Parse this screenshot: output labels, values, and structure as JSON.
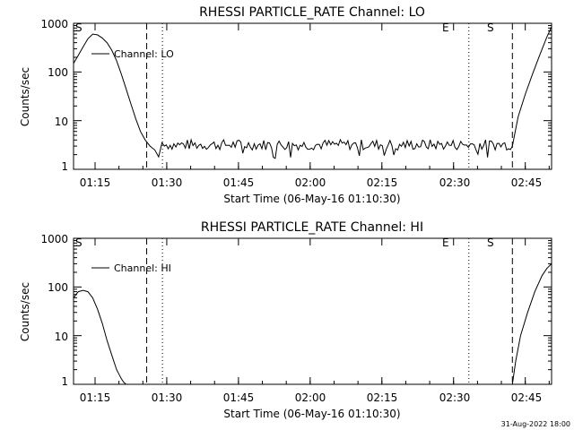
{
  "chart_data": [
    {
      "type": "line",
      "title": "RHESSI PARTICLE_RATE Channel: LO",
      "xlabel": "Start Time (06-May-16 01:10:30)",
      "ylabel": "Counts/sec",
      "yscale": "log",
      "ylim": [
        1,
        1000
      ],
      "xlim_minutes": [
        0,
        100
      ],
      "x_ticks": [
        {
          "label": "01:15",
          "minute": 4.5
        },
        {
          "label": "01:30",
          "minute": 19.5
        },
        {
          "label": "01:45",
          "minute": 34.5
        },
        {
          "label": "02:00",
          "minute": 49.5
        },
        {
          "label": "02:15",
          "minute": 64.5
        },
        {
          "label": "02:30",
          "minute": 79.5
        },
        {
          "label": "02:45",
          "minute": 94.5
        }
      ],
      "y_ticks": [
        {
          "label": "1",
          "value": 1
        },
        {
          "label": "10",
          "value": 10
        },
        {
          "label": "100",
          "value": 100
        },
        {
          "label": "1000",
          "value": 1000
        }
      ],
      "legend": "Channel: LO",
      "markers": [
        {
          "label": "S",
          "minute": 0.3,
          "style": "plain"
        },
        {
          "label": "",
          "minute": 15.3,
          "style": "dashed"
        },
        {
          "label": "",
          "minute": 18.6,
          "style": "dotted"
        },
        {
          "label": "E",
          "minute": 82.7,
          "style": "dotted"
        },
        {
          "label": "S",
          "minute": 91.8,
          "style": "dashed"
        },
        {
          "label": "",
          "minute": 100.0,
          "style": "dashdot"
        }
      ],
      "series": [
        {
          "name": "Channel: LO",
          "x": [
            0.0,
            1.0,
            2.0,
            3.0,
            4.0,
            5.0,
            6.0,
            7.0,
            8.0,
            9.0,
            10.0,
            11.0,
            12.0,
            13.0,
            14.0,
            15.0,
            16.0,
            17.0,
            17.8,
            18.5,
            19.0,
            91.8,
            93.0,
            94.5,
            96.0,
            97.5,
            99.0,
            100.0
          ],
          "y": [
            150,
            220,
            330,
            480,
            600,
            580,
            500,
            400,
            280,
            170,
            90,
            45,
            22,
            11,
            6,
            4,
            3,
            2.5,
            1.8,
            3.5,
            3.0,
            3.0,
            12,
            35,
            90,
            220,
            520,
            850
          ],
          "noise_between_minutes": [
            19.0,
            91.8
          ],
          "noise_mean": 3.2
        }
      ]
    },
    {
      "type": "line",
      "title": "RHESSI PARTICLE_RATE Channel: HI",
      "xlabel": "Start Time (06-May-16 01:10:30)",
      "ylabel": "Counts/sec",
      "yscale": "log",
      "ylim": [
        1,
        1000
      ],
      "xlim_minutes": [
        0,
        100
      ],
      "x_ticks": [
        {
          "label": "01:15",
          "minute": 4.5
        },
        {
          "label": "01:30",
          "minute": 19.5
        },
        {
          "label": "01:45",
          "minute": 34.5
        },
        {
          "label": "02:00",
          "minute": 49.5
        },
        {
          "label": "02:15",
          "minute": 64.5
        },
        {
          "label": "02:30",
          "minute": 79.5
        },
        {
          "label": "02:45",
          "minute": 94.5
        }
      ],
      "y_ticks": [
        {
          "label": "1",
          "value": 1
        },
        {
          "label": "10",
          "value": 10
        },
        {
          "label": "100",
          "value": 100
        },
        {
          "label": "1000",
          "value": 1000
        }
      ],
      "legend": "Channel: HI",
      "markers": [
        {
          "label": "S",
          "minute": 0.3,
          "style": "plain"
        },
        {
          "label": "",
          "minute": 15.3,
          "style": "dashed"
        },
        {
          "label": "",
          "minute": 18.6,
          "style": "dotted"
        },
        {
          "label": "E",
          "minute": 82.7,
          "style": "dotted"
        },
        {
          "label": "S",
          "minute": 91.8,
          "style": "dashed"
        },
        {
          "label": "",
          "minute": 100.0,
          "style": "dashdot"
        }
      ],
      "series": [
        {
          "name": "Channel: HI",
          "x": [
            0.0,
            1.0,
            2.0,
            3.0,
            4.0,
            5.0,
            6.0,
            7.0,
            8.0,
            9.0,
            10.0,
            10.5,
            11.0,
            91.8,
            92.5,
            93.5,
            95.0,
            96.5,
            98.0,
            99.0,
            100.0
          ],
          "y": [
            60,
            80,
            85,
            80,
            60,
            35,
            18,
            8,
            4,
            2,
            1.3,
            1.1,
            1.0,
            1.0,
            3,
            10,
            30,
            80,
            170,
            240,
            300
          ]
        }
      ]
    }
  ],
  "footer": {
    "date_stamp": "31-Aug-2022 18:00"
  }
}
